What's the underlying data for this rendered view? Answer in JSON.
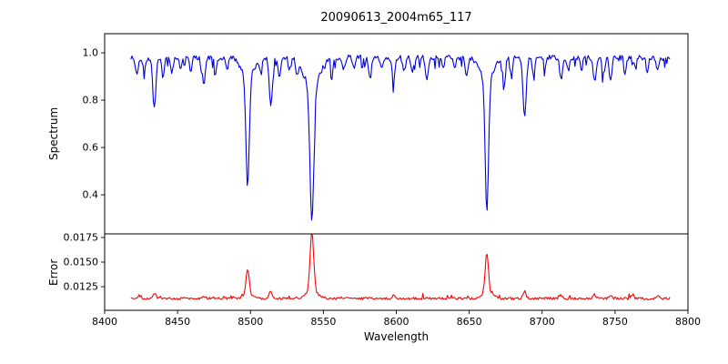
{
  "chart_data": {
    "type": "line",
    "title": "20090613_2004m65_117",
    "xlabel": "Wavelength",
    "x_axis": {
      "min": 8400,
      "max": 8800,
      "ticks": [
        {
          "v": 8400,
          "label": "8400"
        },
        {
          "v": 8450,
          "label": "8450"
        },
        {
          "v": 8500,
          "label": "8500"
        },
        {
          "v": 8550,
          "label": "8550"
        },
        {
          "v": 8600,
          "label": "8600"
        },
        {
          "v": 8650,
          "label": "8650"
        },
        {
          "v": 8700,
          "label": "8700"
        },
        {
          "v": 8750,
          "label": "8750"
        },
        {
          "v": 8800,
          "label": "8800"
        }
      ]
    },
    "x_range": [
      8418,
      8788
    ],
    "sample_step": 0.7,
    "grid": false,
    "legend": false,
    "panels": [
      {
        "name": "spectrum",
        "ylabel": "Spectrum",
        "color": "#0000dd",
        "ylim": [
          0.235,
          1.081
        ],
        "y_ticks": [
          {
            "v": 0.4,
            "label": "0.4"
          },
          {
            "v": 0.6,
            "label": "0.6"
          },
          {
            "v": 0.8,
            "label": "0.8"
          },
          {
            "v": 1.0,
            "label": "1.0"
          }
        ],
        "baseline": 0.98,
        "noise": 0.022,
        "spike_prob": 0.15,
        "spike_amp": 0.05,
        "spike_sign": -1,
        "features": [
          {
            "c": 8422,
            "a": -0.07,
            "s": 1.0
          },
          {
            "c": 8427,
            "a": -0.05,
            "s": 0.9
          },
          {
            "c": 8434,
            "a": -0.22,
            "s": 1.0
          },
          {
            "c": 8440,
            "a": -0.08,
            "s": 0.8
          },
          {
            "c": 8446,
            "a": -0.07,
            "s": 0.8
          },
          {
            "c": 8452,
            "a": -0.05,
            "s": 0.8
          },
          {
            "c": 8459,
            "a": -0.06,
            "s": 0.8
          },
          {
            "c": 8468,
            "a": -0.11,
            "s": 0.9
          },
          {
            "c": 8476,
            "a": -0.06,
            "s": 0.8
          },
          {
            "c": 8484,
            "a": -0.05,
            "s": 0.8
          },
          {
            "c": 8498.0,
            "a": -0.46,
            "s": 1.1
          },
          {
            "c": 8498.0,
            "a": -0.09,
            "s": 4.0
          },
          {
            "c": 8507,
            "a": -0.06,
            "s": 0.8
          },
          {
            "c": 8514,
            "a": -0.2,
            "s": 1.1
          },
          {
            "c": 8520,
            "a": -0.08,
            "s": 0.9
          },
          {
            "c": 8527,
            "a": -0.05,
            "s": 0.8
          },
          {
            "c": 8532,
            "a": -0.06,
            "s": 0.8
          },
          {
            "c": 8542.1,
            "a": -0.56,
            "s": 1.3
          },
          {
            "c": 8542.1,
            "a": -0.13,
            "s": 5.0
          },
          {
            "c": 8556,
            "a": -0.07,
            "s": 0.8
          },
          {
            "c": 8564,
            "a": -0.05,
            "s": 0.8
          },
          {
            "c": 8571,
            "a": -0.04,
            "s": 0.8
          },
          {
            "c": 8582,
            "a": -0.09,
            "s": 0.9
          },
          {
            "c": 8590,
            "a": -0.05,
            "s": 0.8
          },
          {
            "c": 8598,
            "a": -0.1,
            "s": 0.9
          },
          {
            "c": 8605,
            "a": -0.05,
            "s": 0.8
          },
          {
            "c": 8611,
            "a": -0.06,
            "s": 0.8
          },
          {
            "c": 8621,
            "a": -0.09,
            "s": 0.9
          },
          {
            "c": 8632,
            "a": -0.05,
            "s": 0.8
          },
          {
            "c": 8640,
            "a": -0.05,
            "s": 0.8
          },
          {
            "c": 8648,
            "a": -0.07,
            "s": 0.8
          },
          {
            "c": 8662.1,
            "a": -0.55,
            "s": 1.15
          },
          {
            "c": 8662.1,
            "a": -0.095,
            "s": 4.5
          },
          {
            "c": 8674,
            "a": -0.11,
            "s": 0.9
          },
          {
            "c": 8679,
            "a": -0.08,
            "s": 0.8
          },
          {
            "c": 8688,
            "a": -0.26,
            "s": 1.1
          },
          {
            "c": 8694,
            "a": -0.07,
            "s": 0.8
          },
          {
            "c": 8702,
            "a": -0.05,
            "s": 0.8
          },
          {
            "c": 8713,
            "a": -0.09,
            "s": 0.9
          },
          {
            "c": 8718,
            "a": -0.06,
            "s": 0.8
          },
          {
            "c": 8727,
            "a": -0.05,
            "s": 0.8
          },
          {
            "c": 8736,
            "a": -0.1,
            "s": 0.9
          },
          {
            "c": 8742,
            "a": -0.06,
            "s": 0.8
          },
          {
            "c": 8747,
            "a": -0.09,
            "s": 0.9
          },
          {
            "c": 8757,
            "a": -0.07,
            "s": 0.8
          },
          {
            "c": 8764,
            "a": -0.05,
            "s": 0.8
          },
          {
            "c": 8772,
            "a": -0.06,
            "s": 0.8
          },
          {
            "c": 8779,
            "a": -0.05,
            "s": 0.8
          }
        ]
      },
      {
        "name": "error",
        "ylabel": "Error",
        "color": "#ff0000",
        "ylim": [
          0.0101,
          0.01787
        ],
        "y_ticks": [
          {
            "v": 0.0125,
            "label": "0.0125"
          },
          {
            "v": 0.015,
            "label": "0.0150"
          },
          {
            "v": 0.0175,
            "label": "0.0175"
          }
        ],
        "baseline": 0.0113,
        "noise": 0.00025,
        "spike_prob": 0.08,
        "spike_amp": 0.0004,
        "spike_sign": 1,
        "features": [
          {
            "c": 8424,
            "a": 0.0003,
            "s": 1.0
          },
          {
            "c": 8434,
            "a": 0.0005,
            "s": 1.1
          },
          {
            "c": 8468,
            "a": 0.0003,
            "s": 1.0
          },
          {
            "c": 8498.0,
            "a": 0.0026,
            "s": 1.1
          },
          {
            "c": 8498.0,
            "a": 0.0004,
            "s": 3.0
          },
          {
            "c": 8514,
            "a": 0.0008,
            "s": 1.0
          },
          {
            "c": 8542.1,
            "a": 0.0059,
            "s": 1.2
          },
          {
            "c": 8542.1,
            "a": 0.0008,
            "s": 4.0
          },
          {
            "c": 8582,
            "a": 0.0002,
            "s": 1.0
          },
          {
            "c": 8598,
            "a": 0.0003,
            "s": 1.0
          },
          {
            "c": 8662.1,
            "a": 0.004,
            "s": 1.1
          },
          {
            "c": 8662.1,
            "a": 0.0006,
            "s": 3.5
          },
          {
            "c": 8688,
            "a": 0.0008,
            "s": 1.0
          },
          {
            "c": 8713,
            "a": 0.0003,
            "s": 1.0
          },
          {
            "c": 8736,
            "a": 0.0004,
            "s": 1.0
          },
          {
            "c": 8747,
            "a": 0.0003,
            "s": 1.0
          },
          {
            "c": 8762,
            "a": 0.0004,
            "s": 1.0
          },
          {
            "c": 8779,
            "a": 0.0003,
            "s": 1.0
          }
        ]
      }
    ]
  }
}
